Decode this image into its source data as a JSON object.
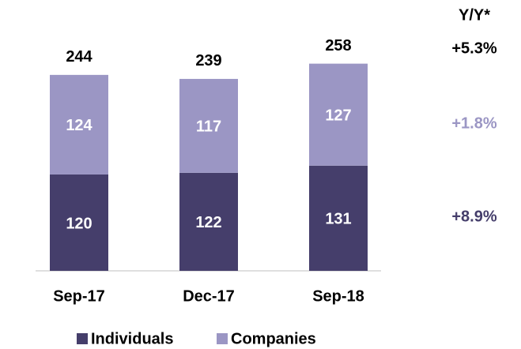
{
  "chart_data": {
    "type": "stacked_bar",
    "categories": [
      "Sep-17",
      "Dec-17",
      "Sep-18"
    ],
    "series": [
      {
        "name": "Individuals",
        "color": "#453e6b",
        "values": [
          120,
          122,
          131
        ]
      },
      {
        "name": "Companies",
        "color": "#9b96c4",
        "values": [
          124,
          117,
          127
        ]
      }
    ],
    "totals": [
      244,
      239,
      258
    ],
    "yoy": {
      "title": "Y/Y*",
      "total": "+5.3%",
      "series": [
        "+8.9%",
        "+1.8%"
      ]
    }
  }
}
